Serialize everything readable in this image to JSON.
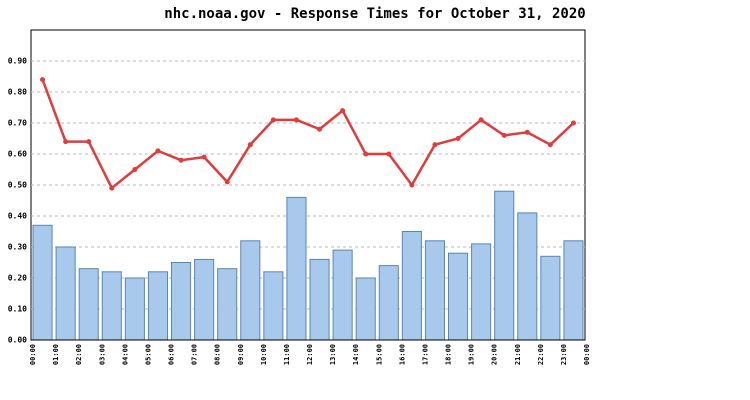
{
  "chart_data": {
    "type": "bar",
    "title": "nhc.noaa.gov - Response Times for October 31, 2020",
    "x_tick_labels": [
      "00:00",
      "01:00",
      "02:00",
      "03:00",
      "04:00",
      "05:00",
      "06:00",
      "07:00",
      "08:00",
      "09:00",
      "10:00",
      "11:00",
      "12:00",
      "13:00",
      "14:00",
      "15:00",
      "16:00",
      "17:00",
      "18:00",
      "19:00",
      "20:00",
      "21:00",
      "22:00",
      "23:00",
      "00:00"
    ],
    "series": [
      {
        "type": "bar",
        "color": "#a8c8ec",
        "values": [
          0.37,
          0.3,
          0.23,
          0.22,
          0.2,
          0.22,
          0.25,
          0.26,
          0.23,
          0.32,
          0.22,
          0.46,
          0.26,
          0.29,
          0.2,
          0.24,
          0.35,
          0.32,
          0.28,
          0.31,
          0.48,
          0.41,
          0.27,
          0.32
        ]
      },
      {
        "type": "line",
        "color": "#e03c3c",
        "values": [
          0.84,
          0.64,
          0.64,
          0.49,
          0.55,
          0.61,
          0.58,
          0.59,
          0.51,
          0.63,
          0.71,
          0.71,
          0.68,
          0.74,
          0.6,
          0.6,
          0.5,
          0.63,
          0.65,
          0.71,
          0.66,
          0.67,
          0.63,
          0.7
        ]
      }
    ],
    "ylim": [
      0,
      1
    ],
    "yticks": [
      {
        "value": 0,
        "label": "0.00"
      },
      {
        "value": 0.1,
        "label": "0.10"
      },
      {
        "value": 0.2,
        "label": "0.20"
      },
      {
        "value": 0.3,
        "label": "0.30"
      },
      {
        "value": 0.4,
        "label": "0.40"
      },
      {
        "value": 0.5,
        "label": "0.50"
      },
      {
        "value": 0.6,
        "label": "0.60"
      },
      {
        "value": 0.7,
        "label": "0.70"
      },
      {
        "value": 0.8,
        "label": "0.80"
      },
      {
        "value": 0.9,
        "label": "0.90"
      }
    ],
    "grid": true
  }
}
